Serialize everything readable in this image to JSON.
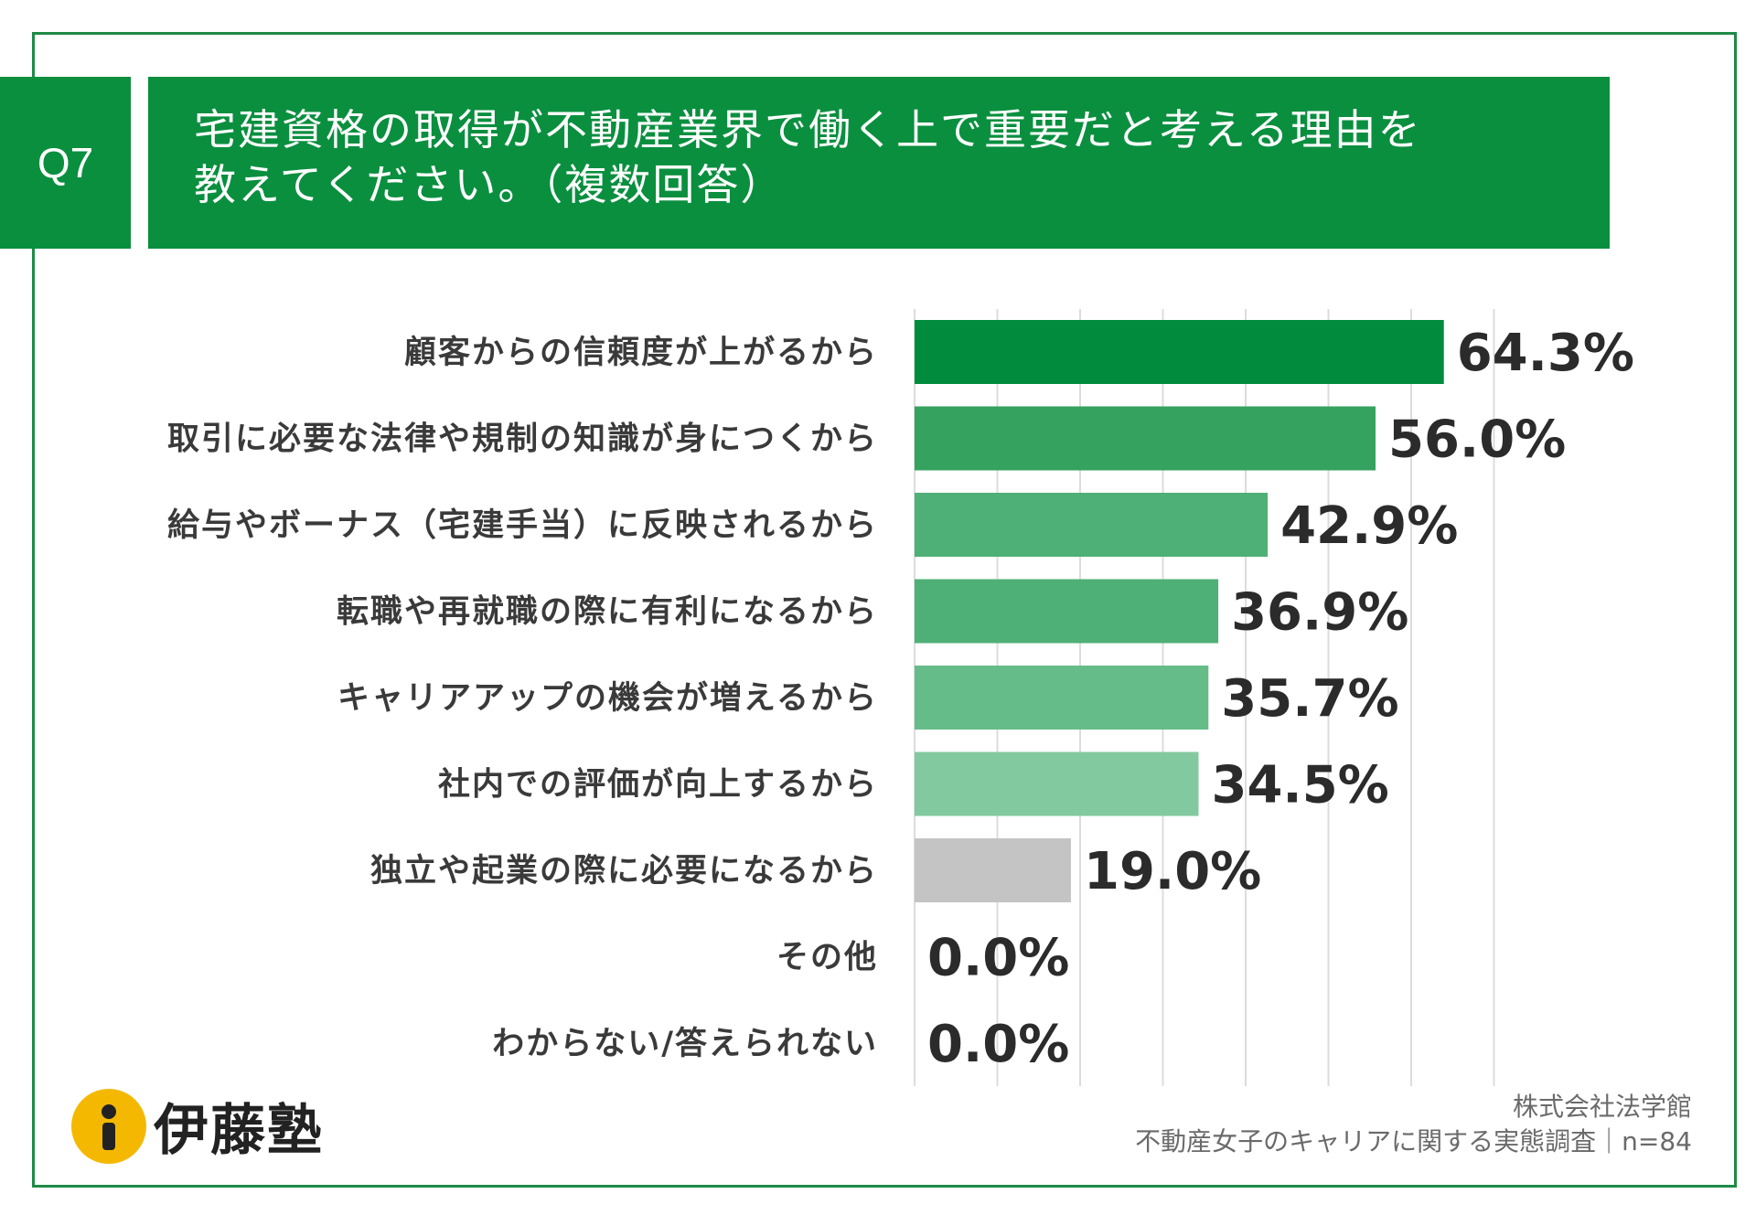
{
  "header": {
    "badge": "Q7",
    "title_line1": "宅建資格の取得が不動産業界で働く上で重要だと考える理由を",
    "title_line2": "教えてください。（複数回答）"
  },
  "chart_data": {
    "type": "bar",
    "orientation": "horizontal",
    "categories": [
      "顧客からの信頼度が上がるから",
      "取引に必要な法律や規制の知識が身につくから",
      "給与やボーナス（宅建手当）に反映されるから",
      "転職や再就職の際に有利になるから",
      "キャリアアップの機会が増えるから",
      "社内での評価が向上するから",
      "独立や起業の際に必要になるから",
      "その他",
      "わからない/答えられない"
    ],
    "values": [
      64.3,
      56.0,
      42.9,
      36.9,
      35.7,
      34.5,
      19.0,
      0.0,
      0.0
    ],
    "value_labels": [
      "64.3%",
      "56.0%",
      "42.9%",
      "36.9%",
      "35.7%",
      "34.5%",
      "19.0%",
      "0.0%",
      "0.0%"
    ],
    "colors": [
      "#008c3c",
      "#35a260",
      "#4fb077",
      "#4fb077",
      "#66bc89",
      "#82c9a0",
      "#c4c4c4",
      "#c4c4c4",
      "#c4c4c4"
    ],
    "xlim": [
      0,
      70
    ],
    "grid": true,
    "unit": "%"
  },
  "footer": {
    "logo_text": "伊藤塾",
    "source_line1": "株式会社法学館",
    "source_line2": "不動産女子のキャリアに関する実態調査｜n=84"
  }
}
